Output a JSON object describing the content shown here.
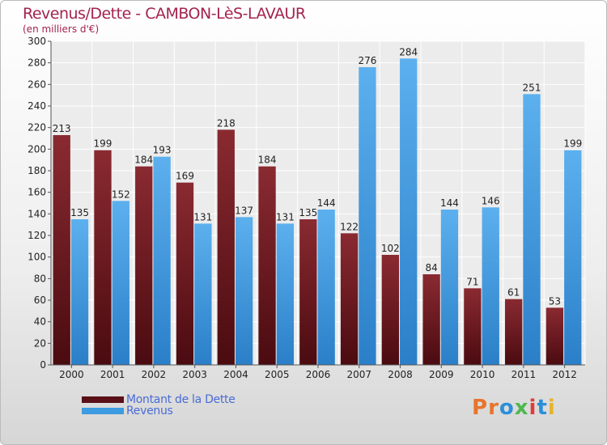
{
  "header": {
    "title": "Revenus/Dette - CAMBON-LèS-LAVAUR",
    "subtitle": "(en milliers d'€)"
  },
  "logo": {
    "text": "Proxiti",
    "colors": [
      "#e8752b",
      "#e8752b",
      "#2b8fd9",
      "#4db84d",
      "#e23b3b",
      "#2b8fd9",
      "#e8b32b"
    ]
  },
  "chart_data": {
    "type": "bar",
    "categories": [
      "2000",
      "2001",
      "2002",
      "2003",
      "2004",
      "2005",
      "2006",
      "2007",
      "2008",
      "2009",
      "2010",
      "2011",
      "2012"
    ],
    "series": [
      {
        "name": "Montant de la Dette",
        "color": "#7a1f26",
        "values": [
          213,
          199,
          184,
          169,
          218,
          184,
          135,
          122,
          102,
          84,
          71,
          61,
          53
        ]
      },
      {
        "name": "Revenus",
        "color": "#3d9be0",
        "values": [
          135,
          152,
          193,
          131,
          137,
          131,
          144,
          276,
          284,
          144,
          146,
          251,
          199
        ]
      }
    ],
    "ylim": [
      0,
      300
    ],
    "ytick_step": 20,
    "grid": true,
    "legend_position": "bottom-left"
  }
}
